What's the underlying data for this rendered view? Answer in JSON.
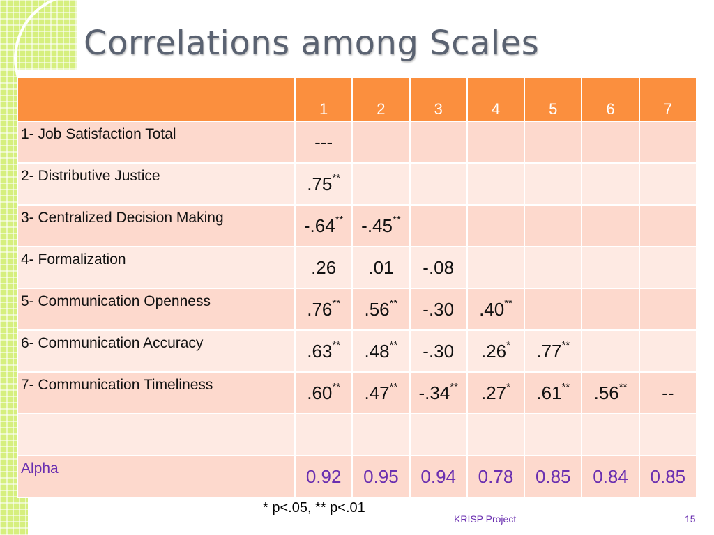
{
  "slide": {
    "title": "Correlations among Scales",
    "footnote": "* p<.05, ** p<.01",
    "footer": "KRISP Project",
    "page_number": "15",
    "colors": {
      "header": "#fb8f3e",
      "row_odd": "#fdd9cd",
      "row_even": "#feeae3",
      "alpha_text": "#6a2fb0"
    }
  },
  "table": {
    "columns": [
      "1",
      "2",
      "3",
      "4",
      "5",
      "6",
      "7"
    ],
    "rows": [
      {
        "label": "1- Job Satisfaction Total",
        "cells": [
          {
            "v": "---",
            "s": ""
          },
          {
            "v": "",
            "s": ""
          },
          {
            "v": "",
            "s": ""
          },
          {
            "v": "",
            "s": ""
          },
          {
            "v": "",
            "s": ""
          },
          {
            "v": "",
            "s": ""
          },
          {
            "v": "",
            "s": ""
          }
        ]
      },
      {
        "label": "2- Distributive Justice",
        "cells": [
          {
            "v": ".75",
            "s": "**"
          },
          {
            "v": "",
            "s": ""
          },
          {
            "v": "",
            "s": ""
          },
          {
            "v": "",
            "s": ""
          },
          {
            "v": "",
            "s": ""
          },
          {
            "v": "",
            "s": ""
          },
          {
            "v": "",
            "s": ""
          }
        ]
      },
      {
        "label": "3- Centralized Decision Making",
        "cells": [
          {
            "v": "-.64",
            "s": "**"
          },
          {
            "v": "-.45",
            "s": "**"
          },
          {
            "v": "",
            "s": ""
          },
          {
            "v": "",
            "s": ""
          },
          {
            "v": "",
            "s": ""
          },
          {
            "v": "",
            "s": ""
          },
          {
            "v": "",
            "s": ""
          }
        ]
      },
      {
        "label": "4- Formalization",
        "cells": [
          {
            "v": ".26",
            "s": ""
          },
          {
            "v": ".01",
            "s": ""
          },
          {
            "v": "-.08",
            "s": ""
          },
          {
            "v": "",
            "s": ""
          },
          {
            "v": "",
            "s": ""
          },
          {
            "v": "",
            "s": ""
          },
          {
            "v": "",
            "s": ""
          }
        ]
      },
      {
        "label": "5- Communication Openness",
        "cells": [
          {
            "v": ".76",
            "s": "**"
          },
          {
            "v": ".56",
            "s": "**"
          },
          {
            "v": "-.30",
            "s": ""
          },
          {
            "v": ".40",
            "s": "**"
          },
          {
            "v": "",
            "s": ""
          },
          {
            "v": "",
            "s": ""
          },
          {
            "v": "",
            "s": ""
          }
        ]
      },
      {
        "label": "6- Communication Accuracy",
        "cells": [
          {
            "v": ".63",
            "s": "**"
          },
          {
            "v": ".48",
            "s": "**"
          },
          {
            "v": "-.30",
            "s": ""
          },
          {
            "v": ".26",
            "s": "*"
          },
          {
            "v": ".77",
            "s": "**"
          },
          {
            "v": "",
            "s": ""
          },
          {
            "v": "",
            "s": ""
          }
        ]
      },
      {
        "label": "7- Communication Timeliness",
        "cells": [
          {
            "v": ".60",
            "s": "**"
          },
          {
            "v": ".47",
            "s": "**"
          },
          {
            "v": "-.34",
            "s": "**"
          },
          {
            "v": ".27",
            "s": "*"
          },
          {
            "v": ".61",
            "s": "**"
          },
          {
            "v": ".56",
            "s": "**"
          },
          {
            "v": "--",
            "s": ""
          }
        ]
      },
      {
        "label": "",
        "cells": [
          {
            "v": "",
            "s": ""
          },
          {
            "v": "",
            "s": ""
          },
          {
            "v": "",
            "s": ""
          },
          {
            "v": "",
            "s": ""
          },
          {
            "v": "",
            "s": ""
          },
          {
            "v": "",
            "s": ""
          },
          {
            "v": "",
            "s": ""
          }
        ]
      },
      {
        "label": "Alpha",
        "alpha": true,
        "cells": [
          {
            "v": "0.92",
            "s": ""
          },
          {
            "v": "0.95",
            "s": ""
          },
          {
            "v": "0.94",
            "s": ""
          },
          {
            "v": "0.78",
            "s": ""
          },
          {
            "v": "0.85",
            "s": ""
          },
          {
            "v": "0.84",
            "s": ""
          },
          {
            "v": "0.85",
            "s": ""
          }
        ]
      }
    ]
  }
}
